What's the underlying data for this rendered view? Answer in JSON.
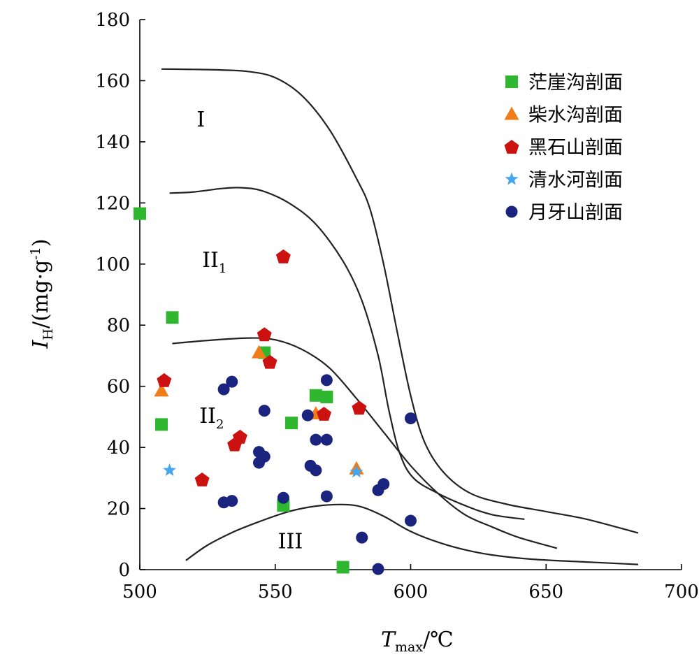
{
  "chart_data": {
    "type": "scatter",
    "xlabel": {
      "main": "T",
      "sub": "max",
      "unit": "/℃"
    },
    "ylabel": {
      "main": "I",
      "sub": "H",
      "unit": "/(mg·g",
      "sup": "-1",
      "close": ")"
    },
    "xlim": [
      500,
      700
    ],
    "ylim": [
      0,
      180
    ],
    "x_ticks": [
      "500",
      "550",
      "600",
      "650",
      "700"
    ],
    "y_ticks": [
      "0",
      "20",
      "40",
      "60",
      "80",
      "100",
      "120",
      "140",
      "160",
      "180"
    ],
    "legend_position": "top-right",
    "regions": [
      {
        "label": "I",
        "sub": "",
        "x": 521,
        "y": 145
      },
      {
        "label": "II",
        "sub": "1",
        "x": 523,
        "y": 99
      },
      {
        "label": "II",
        "sub": "2",
        "x": 522,
        "y": 48
      },
      {
        "label": "III",
        "sub": "",
        "x": 551,
        "y": 7
      }
    ],
    "boundaries": [
      {
        "name": "I/II1",
        "points": [
          [
            508,
            163.8
          ],
          [
            520,
            163.7
          ],
          [
            530,
            163.5
          ],
          [
            540,
            163
          ],
          [
            550,
            161
          ],
          [
            560,
            155
          ],
          [
            570,
            144
          ],
          [
            580,
            128
          ],
          [
            585,
            118
          ],
          [
            590,
            100
          ],
          [
            595,
            78
          ],
          [
            600,
            57
          ],
          [
            605,
            42
          ],
          [
            612,
            32
          ],
          [
            622,
            25
          ],
          [
            635,
            21.5
          ],
          [
            650,
            19
          ],
          [
            665,
            16.5
          ],
          [
            684,
            12
          ]
        ]
      },
      {
        "name": "II1/II2",
        "points": [
          [
            511,
            123.2
          ],
          [
            520,
            123.6
          ],
          [
            530,
            124.7
          ],
          [
            537,
            125
          ],
          [
            545,
            124
          ],
          [
            555,
            120
          ],
          [
            565,
            113
          ],
          [
            575,
            101
          ],
          [
            582,
            88
          ],
          [
            588,
            70
          ],
          [
            592,
            52
          ],
          [
            596,
            38
          ],
          [
            601,
            30
          ],
          [
            610,
            25
          ],
          [
            620,
            21
          ],
          [
            630,
            18
          ],
          [
            642,
            16.5
          ]
        ]
      },
      {
        "name": "II2/III",
        "points": [
          [
            512,
            74
          ],
          [
            525,
            75
          ],
          [
            540,
            75.8
          ],
          [
            550,
            75.2
          ],
          [
            560,
            72
          ],
          [
            570,
            66
          ],
          [
            580,
            56
          ],
          [
            590,
            45
          ],
          [
            600,
            34
          ],
          [
            610,
            25
          ],
          [
            620,
            18
          ],
          [
            630,
            14
          ],
          [
            640,
            10.5
          ],
          [
            654,
            7
          ]
        ]
      },
      {
        "name": "III",
        "points": [
          [
            517,
            3
          ],
          [
            525,
            8
          ],
          [
            535,
            12.5
          ],
          [
            545,
            16
          ],
          [
            555,
            19
          ],
          [
            565,
            20.8
          ],
          [
            575,
            21.3
          ],
          [
            582,
            20.5
          ],
          [
            590,
            17.5
          ],
          [
            600,
            12.5
          ],
          [
            610,
            9
          ],
          [
            620,
            6.5
          ],
          [
            630,
            4.8
          ],
          [
            645,
            3.4
          ],
          [
            665,
            2.5
          ],
          [
            684,
            1.7
          ]
        ]
      }
    ],
    "series": [
      {
        "name": "茫崖沟剖面",
        "marker": "square",
        "color": "#2fb82f",
        "points": [
          [
            500,
            116.5
          ],
          [
            512,
            82.5
          ],
          [
            508,
            47.5
          ],
          [
            546,
            71
          ],
          [
            565,
            57
          ],
          [
            569,
            56.5
          ],
          [
            556,
            48
          ],
          [
            553,
            21
          ],
          [
            575,
            0.8
          ]
        ]
      },
      {
        "name": "柴水沟剖面",
        "marker": "triangle",
        "color": "#f07d1a",
        "points": [
          [
            508,
            58.5
          ],
          [
            544,
            71
          ],
          [
            565,
            51
          ],
          [
            580,
            33
          ]
        ]
      },
      {
        "name": "黑石山剖面",
        "marker": "pentagon",
        "color": "#cc1111",
        "points": [
          [
            553,
            102.5
          ],
          [
            546,
            77
          ],
          [
            548,
            68
          ],
          [
            509,
            62
          ],
          [
            568,
            51
          ],
          [
            581,
            53
          ],
          [
            537,
            43.5
          ],
          [
            535,
            41
          ],
          [
            523,
            29.5
          ]
        ]
      },
      {
        "name": "清水河剖面",
        "marker": "star",
        "color": "#45a6ee",
        "points": [
          [
            511,
            32.5
          ],
          [
            580,
            32
          ]
        ]
      },
      {
        "name": "月牙山剖面",
        "marker": "circle",
        "color": "#1a237e",
        "points": [
          [
            531,
            59
          ],
          [
            534,
            61.5
          ],
          [
            569,
            62
          ],
          [
            546,
            52
          ],
          [
            562,
            50.5
          ],
          [
            600,
            49.5
          ],
          [
            565,
            42.5
          ],
          [
            569,
            42.5
          ],
          [
            544,
            38.5
          ],
          [
            546,
            37
          ],
          [
            544,
            35
          ],
          [
            563,
            34
          ],
          [
            565,
            32.5
          ],
          [
            590,
            28
          ],
          [
            588,
            26
          ],
          [
            531,
            22
          ],
          [
            534,
            22.5
          ],
          [
            553,
            23.5
          ],
          [
            569,
            24
          ],
          [
            600,
            16
          ],
          [
            582,
            10.5
          ],
          [
            588,
            0.2
          ]
        ]
      }
    ]
  }
}
